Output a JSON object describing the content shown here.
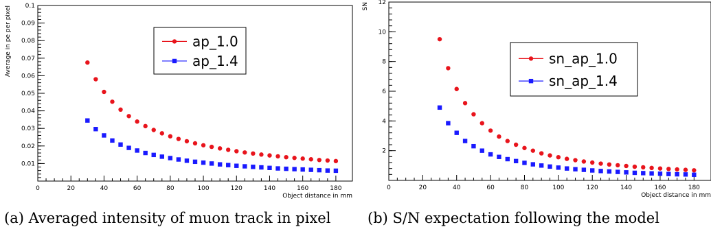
{
  "captions": {
    "a": "(a) Averaged intensity of muon track in pixel",
    "b": "(b) S/N expectation following the model"
  },
  "chart_data": [
    {
      "type": "scatter",
      "title": "",
      "xlabel": "Object distance in mm",
      "ylabel": "Average in pe per pixel",
      "xlim": [
        0,
        190
      ],
      "ylim": [
        0,
        0.1
      ],
      "xticks": [
        0,
        20,
        40,
        60,
        80,
        100,
        120,
        140,
        160,
        180
      ],
      "yticks": [
        0.01,
        0.02,
        0.03,
        0.04,
        0.05,
        0.06,
        0.07,
        0.08,
        0.09,
        0.1
      ],
      "ytick_labels": [
        "0.01",
        "0.02",
        "0.03",
        "0.04",
        "0.05",
        "0.06",
        "0.07",
        "0.08",
        "0.09",
        "0.1"
      ],
      "legend_position": "top-right",
      "grid": false,
      "x": [
        30,
        35,
        40,
        45,
        50,
        55,
        60,
        65,
        70,
        75,
        80,
        85,
        90,
        95,
        100,
        105,
        110,
        115,
        120,
        125,
        130,
        135,
        140,
        145,
        150,
        155,
        160,
        165,
        170,
        175,
        180
      ],
      "series": [
        {
          "name": "ap_1.0",
          "color": "#e8141c",
          "marker": "circle",
          "values": [
            0.0675,
            0.058,
            0.0508,
            0.0452,
            0.0407,
            0.037,
            0.0339,
            0.0313,
            0.0291,
            0.0272,
            0.0255,
            0.024,
            0.0227,
            0.0215,
            0.0204,
            0.0195,
            0.0186,
            0.0178,
            0.017,
            0.0163,
            0.0157,
            0.0151,
            0.0146,
            0.0141,
            0.0136,
            0.0132,
            0.0128,
            0.0124,
            0.012,
            0.0117,
            0.0114
          ]
        },
        {
          "name": "ap_1.4",
          "color": "#1a1aff",
          "marker": "square",
          "values": [
            0.0345,
            0.0296,
            0.026,
            0.0231,
            0.0208,
            0.0189,
            0.0174,
            0.016,
            0.0149,
            0.0139,
            0.0131,
            0.0123,
            0.0116,
            0.011,
            0.0105,
            0.01,
            0.0095,
            0.0091,
            0.0087,
            0.0084,
            0.0081,
            0.0078,
            0.0075,
            0.0072,
            0.007,
            0.0068,
            0.0066,
            0.0064,
            0.0062,
            0.006,
            0.0059
          ]
        }
      ]
    },
    {
      "type": "scatter",
      "title": "",
      "xlabel": "Object distance in mm",
      "ylabel": "SN",
      "xlim": [
        0,
        190
      ],
      "ylim": [
        0,
        12
      ],
      "xticks": [
        0,
        20,
        40,
        60,
        80,
        100,
        120,
        140,
        160,
        180
      ],
      "yticks": [
        2,
        4,
        6,
        8,
        10,
        12
      ],
      "ytick_labels": [
        "2",
        "4",
        "6",
        "8",
        "10",
        "12"
      ],
      "legend_position": "top-right",
      "grid": false,
      "x": [
        30,
        35,
        40,
        45,
        50,
        55,
        60,
        65,
        70,
        75,
        80,
        85,
        90,
        95,
        100,
        105,
        110,
        115,
        120,
        125,
        130,
        135,
        140,
        145,
        150,
        155,
        160,
        165,
        170,
        175,
        180
      ],
      "series": [
        {
          "name": "sn_ap_1.0",
          "color": "#e8141c",
          "marker": "circle",
          "values": [
            9.5,
            7.55,
            6.15,
            5.2,
            4.45,
            3.85,
            3.35,
            2.95,
            2.65,
            2.4,
            2.18,
            2.0,
            1.82,
            1.68,
            1.56,
            1.45,
            1.36,
            1.27,
            1.2,
            1.13,
            1.07,
            1.02,
            0.97,
            0.92,
            0.88,
            0.84,
            0.8,
            0.77,
            0.74,
            0.71,
            0.68
          ]
        },
        {
          "name": "sn_ap_1.4",
          "color": "#1a1aff",
          "marker": "square",
          "values": [
            4.9,
            3.85,
            3.2,
            2.65,
            2.3,
            2.0,
            1.75,
            1.58,
            1.43,
            1.3,
            1.18,
            1.08,
            1.0,
            0.93,
            0.86,
            0.8,
            0.75,
            0.71,
            0.67,
            0.63,
            0.6,
            0.57,
            0.54,
            0.51,
            0.49,
            0.47,
            0.45,
            0.43,
            0.41,
            0.4,
            0.38
          ]
        }
      ]
    }
  ]
}
